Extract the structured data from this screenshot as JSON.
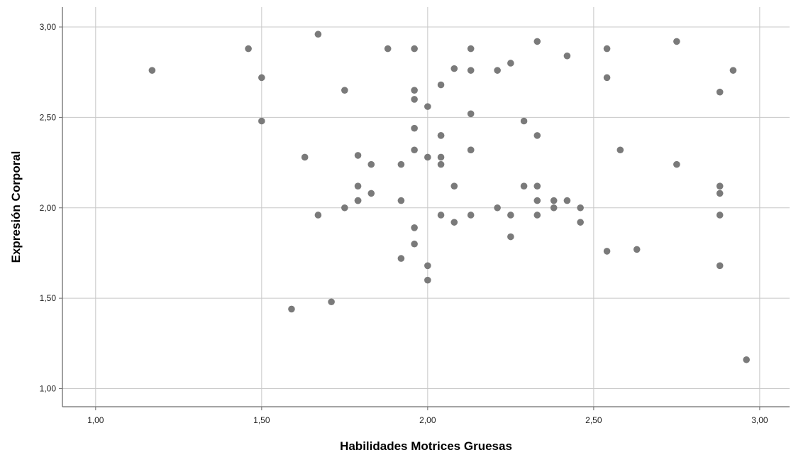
{
  "chart_data": {
    "type": "scatter",
    "title": "",
    "xlabel": "Habilidades Motrices Gruesas",
    "ylabel": "Expresión Corporal",
    "xlim": [
      0.9,
      3.09
    ],
    "ylim": [
      0.9,
      3.11
    ],
    "grid": true,
    "point_color": "#7a7a7a",
    "x_ticks": [
      {
        "value": 1.0,
        "label": "1,00"
      },
      {
        "value": 1.5,
        "label": "1,50"
      },
      {
        "value": 2.0,
        "label": "2,00"
      },
      {
        "value": 2.5,
        "label": "2,50"
      },
      {
        "value": 3.0,
        "label": "3,00"
      }
    ],
    "y_ticks": [
      {
        "value": 1.0,
        "label": "1,00"
      },
      {
        "value": 1.5,
        "label": "1,50"
      },
      {
        "value": 2.0,
        "label": "2,00"
      },
      {
        "value": 2.5,
        "label": "2,50"
      },
      {
        "value": 3.0,
        "label": "3,00"
      }
    ],
    "points": [
      [
        1.17,
        2.76
      ],
      [
        1.46,
        2.88
      ],
      [
        1.5,
        2.72
      ],
      [
        1.5,
        2.48
      ],
      [
        1.67,
        2.96
      ],
      [
        1.63,
        2.28
      ],
      [
        1.67,
        1.96
      ],
      [
        1.59,
        1.44
      ],
      [
        1.71,
        1.48
      ],
      [
        1.75,
        2.65
      ],
      [
        1.75,
        2.0
      ],
      [
        1.79,
        2.29
      ],
      [
        1.79,
        2.12
      ],
      [
        1.79,
        2.04
      ],
      [
        1.79,
        2.04
      ],
      [
        1.83,
        2.24
      ],
      [
        1.83,
        2.08
      ],
      [
        1.88,
        2.88
      ],
      [
        1.92,
        2.24
      ],
      [
        1.92,
        2.04
      ],
      [
        1.92,
        1.72
      ],
      [
        1.96,
        2.88
      ],
      [
        1.96,
        2.65
      ],
      [
        1.96,
        2.6
      ],
      [
        1.96,
        2.44
      ],
      [
        1.96,
        2.32
      ],
      [
        1.96,
        1.89
      ],
      [
        1.96,
        1.8
      ],
      [
        2.0,
        2.56
      ],
      [
        2.0,
        2.28
      ],
      [
        2.0,
        1.68
      ],
      [
        2.0,
        1.6
      ],
      [
        2.04,
        2.68
      ],
      [
        2.04,
        2.4
      ],
      [
        2.04,
        2.4
      ],
      [
        2.04,
        2.28
      ],
      [
        2.04,
        2.24
      ],
      [
        2.04,
        1.96
      ],
      [
        2.08,
        2.77
      ],
      [
        2.08,
        2.12
      ],
      [
        2.08,
        1.92
      ],
      [
        2.13,
        2.88
      ],
      [
        2.13,
        2.76
      ],
      [
        2.13,
        2.52
      ],
      [
        2.13,
        2.32
      ],
      [
        2.13,
        2.32
      ],
      [
        2.13,
        1.96
      ],
      [
        2.21,
        2.76
      ],
      [
        2.21,
        2.0
      ],
      [
        2.25,
        2.8
      ],
      [
        2.25,
        1.96
      ],
      [
        2.25,
        1.84
      ],
      [
        2.29,
        2.48
      ],
      [
        2.29,
        2.12
      ],
      [
        2.33,
        2.92
      ],
      [
        2.33,
        2.4
      ],
      [
        2.33,
        2.12
      ],
      [
        2.33,
        2.04
      ],
      [
        2.33,
        1.96
      ],
      [
        2.38,
        2.04
      ],
      [
        2.38,
        2.0
      ],
      [
        2.42,
        2.84
      ],
      [
        2.42,
        2.04
      ],
      [
        2.46,
        2.0
      ],
      [
        2.46,
        1.92
      ],
      [
        2.54,
        2.88
      ],
      [
        2.54,
        2.72
      ],
      [
        2.54,
        1.76
      ],
      [
        2.58,
        2.32
      ],
      [
        2.63,
        1.77
      ],
      [
        2.75,
        2.92
      ],
      [
        2.75,
        2.24
      ],
      [
        2.88,
        2.64
      ],
      [
        2.88,
        2.12
      ],
      [
        2.88,
        2.08
      ],
      [
        2.88,
        1.96
      ],
      [
        2.88,
        1.68
      ],
      [
        2.92,
        2.76
      ],
      [
        2.96,
        1.16
      ]
    ]
  }
}
